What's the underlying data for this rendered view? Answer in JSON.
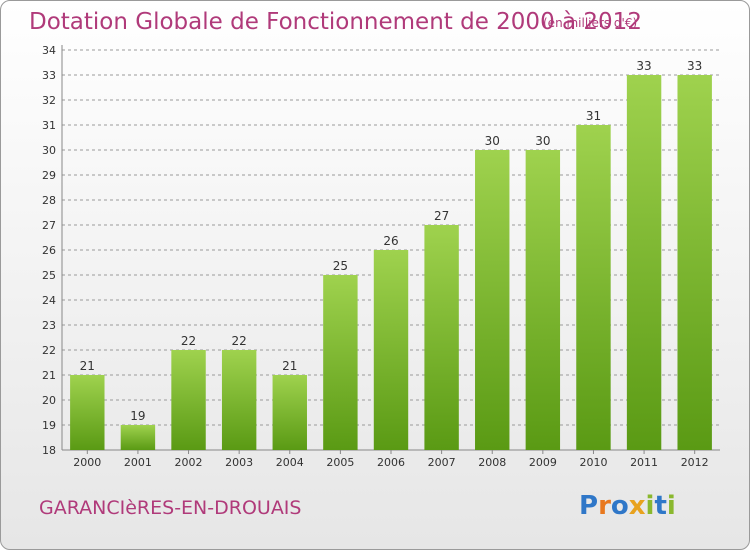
{
  "title": "Dotation Globale de Fonctionnement de 2000 à 2012",
  "unit_note": "(en milliers d'€)",
  "commune": "GARANCIèRES-EN-DROUAIS",
  "logo": {
    "text": "Proxiti",
    "letter_colors": [
      "#2f77c8",
      "#e8781e",
      "#2f77c8",
      "#e8a21e",
      "#8ab82e",
      "#2f77c8",
      "#8ab82e"
    ]
  },
  "colors": {
    "title": "#b03a7a",
    "bar_top": "#9fd24e",
    "bar_bottom": "#5a9a14",
    "grid": "#9a9a9a",
    "axis_text": "#333333"
  },
  "chart_data": {
    "type": "bar",
    "categories": [
      "2000",
      "2001",
      "2002",
      "2003",
      "2004",
      "2005",
      "2006",
      "2007",
      "2008",
      "2009",
      "2010",
      "2011",
      "2012"
    ],
    "values": [
      21,
      19,
      22,
      22,
      21,
      25,
      26,
      27,
      30,
      30,
      31,
      33,
      33
    ],
    "data_labels": [
      "21",
      "19",
      "22",
      "22",
      "21",
      "25",
      "26",
      "27",
      "30",
      "30",
      "31",
      "33",
      "33"
    ],
    "yticks": [
      "18",
      "19",
      "20",
      "21",
      "22",
      "23",
      "24",
      "25",
      "26",
      "27",
      "28",
      "29",
      "30",
      "31",
      "32",
      "33",
      "34"
    ],
    "ylim": [
      18,
      34
    ],
    "grid": true,
    "legend": "none"
  }
}
